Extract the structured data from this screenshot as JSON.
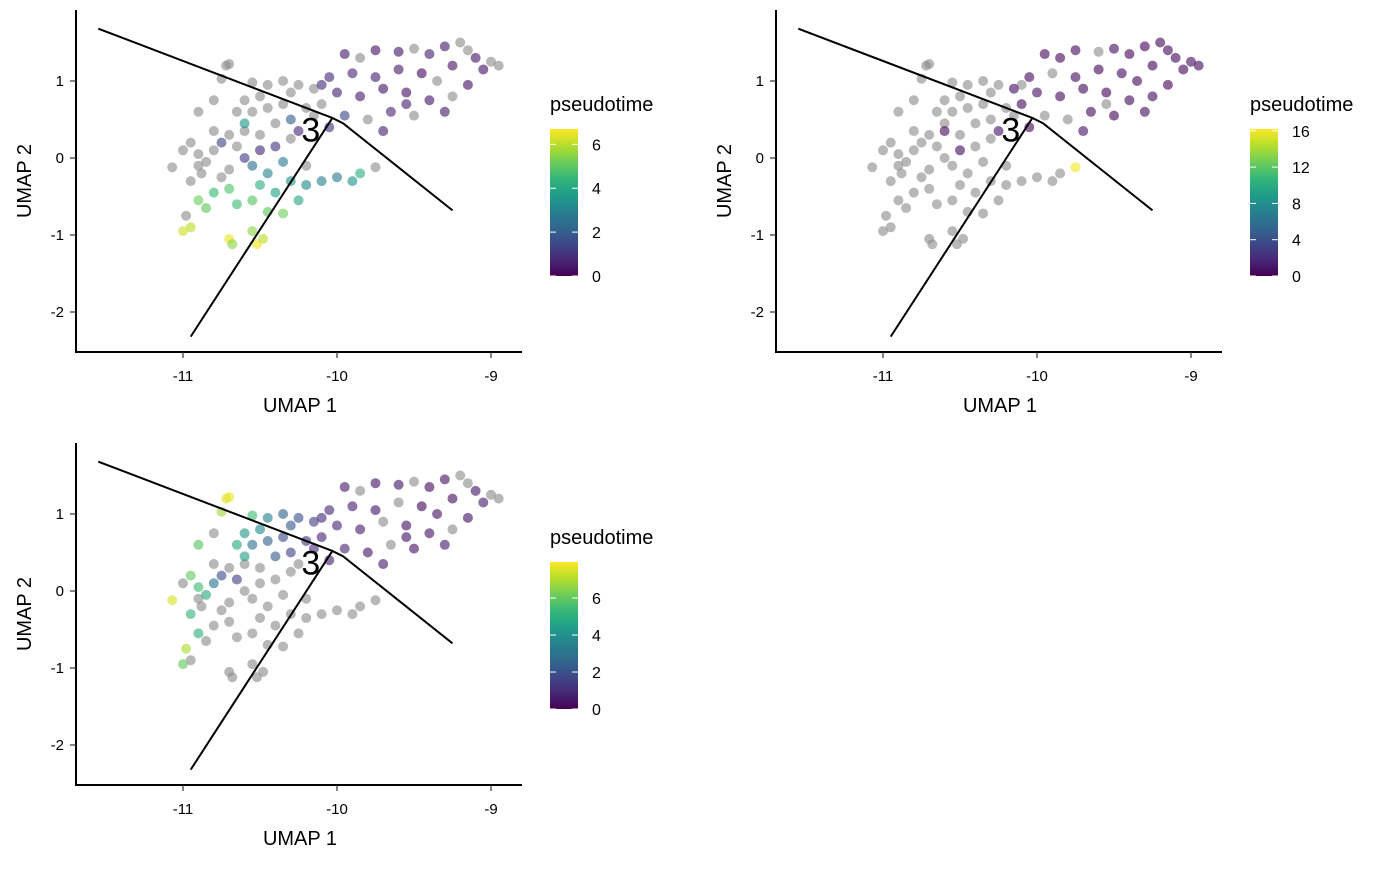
{
  "chart_data": [
    {
      "type": "scatter",
      "xlabel": "UMAP 1",
      "ylabel": "UMAP 2",
      "xlim": [
        -11.69,
        -8.8
      ],
      "ylim": [
        -2.52,
        1.92
      ],
      "xticks": [
        -11,
        -10,
        -9
      ],
      "yticks": [
        -2,
        -1,
        0,
        1
      ],
      "grid": false,
      "legend": {
        "title": "pseudotime",
        "placement": "right",
        "range": [
          0,
          6.7
        ],
        "ticks": [
          0,
          2,
          4,
          6
        ]
      },
      "pseudotime_column": 2,
      "node_label": "3"
    },
    {
      "type": "scatter",
      "xlabel": "UMAP 1",
      "ylabel": "UMAP 2",
      "xlim": [
        -11.69,
        -8.8
      ],
      "ylim": [
        -2.52,
        1.92
      ],
      "xticks": [
        -11,
        -10,
        -9
      ],
      "yticks": [
        -2,
        -1,
        0,
        1
      ],
      "grid": false,
      "legend": {
        "title": "pseudotime",
        "placement": "right",
        "range": [
          0,
          16.2
        ],
        "ticks": [
          0,
          4,
          8,
          12,
          16
        ]
      },
      "pseudotime_column": 3,
      "node_label": "3"
    },
    {
      "type": "scatter",
      "xlabel": "UMAP 1",
      "ylabel": "UMAP 2",
      "xlim": [
        -11.69,
        -8.8
      ],
      "ylim": [
        -2.52,
        1.92
      ],
      "xticks": [
        -11,
        -10,
        -9
      ],
      "yticks": [
        -2,
        -1,
        0,
        1
      ],
      "grid": false,
      "legend": {
        "title": "pseudotime",
        "placement": "right",
        "range": [
          0,
          7.95
        ],
        "ticks": [
          0,
          2,
          4,
          6
        ]
      },
      "pseudotime_column": 4,
      "node_label": "3"
    }
  ],
  "shared": {
    "colors": {
      "na": "#8c8c8c",
      "line": "#000000",
      "viridis": [
        "#440154",
        "#482878",
        "#3e4989",
        "#31688e",
        "#26828e",
        "#1f9e89",
        "#35b779",
        "#6ece58",
        "#b5de2b",
        "#fde725"
      ]
    },
    "trajectory": [
      [
        [
          -11.55,
          1.68
        ],
        [
          -10.03,
          0.52
        ],
        [
          -9.96,
          0.45
        ],
        [
          -9.25,
          -0.68
        ]
      ],
      [
        [
          -10.03,
          0.52
        ],
        [
          -10.95,
          -2.32
        ]
      ]
    ],
    "node_position": [
      -10.17,
      0.37
    ],
    "points_columns": [
      "umap1",
      "umap2",
      "pseudotime_panel1",
      "pseudotime_panel2",
      "pseudotime_panel3"
    ],
    "points": [
      [
        -9.95,
        1.35,
        0.5,
        0.4,
        0.6
      ],
      [
        -9.85,
        1.3,
        null,
        0.3,
        null
      ],
      [
        -9.75,
        1.4,
        0.3,
        0.5,
        0.4
      ],
      [
        -9.6,
        1.38,
        0.4,
        null,
        0.5
      ],
      [
        -9.5,
        1.42,
        null,
        0.6,
        null
      ],
      [
        -9.4,
        1.35,
        0.6,
        0.3,
        0.3
      ],
      [
        -9.3,
        1.45,
        0.5,
        0.2,
        0.4
      ],
      [
        -9.2,
        1.5,
        null,
        0.4,
        null
      ],
      [
        -9.1,
        1.3,
        0.4,
        0.5,
        0.5
      ],
      [
        -9.0,
        1.25,
        null,
        0.6,
        null
      ],
      [
        -8.95,
        1.2,
        null,
        0.5,
        null
      ],
      [
        -9.05,
        1.15,
        0.3,
        0.3,
        0.6
      ],
      [
        -9.25,
        1.2,
        0.4,
        0.2,
        0.3
      ],
      [
        -9.45,
        1.1,
        0.2,
        0.5,
        0.2
      ],
      [
        -9.6,
        1.15,
        0.5,
        0.3,
        null
      ],
      [
        -9.75,
        1.05,
        0.6,
        0.6,
        0.5
      ],
      [
        -9.9,
        1.1,
        0.7,
        null,
        0.7
      ],
      [
        -10.05,
        1.05,
        0.8,
        0.6,
        0.9
      ],
      [
        -10.1,
        0.95,
        0.9,
        null,
        1.0
      ],
      [
        -10.0,
        0.85,
        0.6,
        0.8,
        0.8
      ],
      [
        -9.85,
        0.8,
        0.5,
        0.5,
        0.6
      ],
      [
        -9.7,
        0.9,
        0.4,
        0.4,
        null
      ],
      [
        -9.55,
        0.85,
        0.3,
        0.3,
        0.3
      ],
      [
        -9.4,
        0.75,
        0.4,
        0.4,
        0.5
      ],
      [
        -9.25,
        0.8,
        null,
        0.5,
        null
      ],
      [
        -9.15,
        0.95,
        0.3,
        0.3,
        0.4
      ],
      [
        -9.3,
        0.6,
        0.5,
        0.6,
        0.6
      ],
      [
        -9.5,
        0.55,
        null,
        0.3,
        0.4
      ],
      [
        -9.65,
        0.6,
        0.7,
        0.5,
        null
      ],
      [
        -9.8,
        0.5,
        null,
        null,
        0.5
      ],
      [
        -9.95,
        0.55,
        1.5,
        null,
        0.8
      ],
      [
        -9.7,
        0.35,
        0.6,
        0.9,
        0.6
      ],
      [
        -9.55,
        0.7,
        0.5,
        null,
        0.5
      ],
      [
        -9.35,
        1.0,
        null,
        0.4,
        0.4
      ],
      [
        -9.15,
        1.4,
        null,
        0.4,
        null
      ],
      [
        -10.7,
        1.22,
        null,
        null,
        7.8
      ],
      [
        -10.72,
        1.2,
        null,
        null,
        7.6
      ],
      [
        -10.75,
        1.03,
        null,
        null,
        6.8
      ],
      [
        -10.55,
        0.98,
        null,
        null,
        5.5
      ],
      [
        -10.45,
        0.95,
        null,
        null,
        3.5
      ],
      [
        -10.35,
        1.0,
        null,
        null,
        2.5
      ],
      [
        -10.25,
        0.95,
        null,
        null,
        2.0
      ],
      [
        -10.15,
        0.9,
        null,
        0.7,
        1.5
      ],
      [
        -10.3,
        0.85,
        null,
        null,
        2.2
      ],
      [
        -10.5,
        0.8,
        null,
        null,
        3.8
      ],
      [
        -10.6,
        0.75,
        null,
        null,
        4.2
      ],
      [
        -10.65,
        0.6,
        null,
        null,
        4.8
      ],
      [
        -10.55,
        0.6,
        null,
        null,
        3.0
      ],
      [
        -10.45,
        0.65,
        null,
        null,
        2.6
      ],
      [
        -10.35,
        0.7,
        null,
        null,
        1.8
      ],
      [
        -10.2,
        0.65,
        null,
        null,
        1.2
      ],
      [
        -10.1,
        0.7,
        null,
        0.5,
        0.8
      ],
      [
        -10.6,
        0.45,
        3.5,
        null,
        4.5
      ],
      [
        -10.4,
        0.45,
        null,
        null,
        2.3
      ],
      [
        -10.3,
        0.5,
        2.0,
        null,
        1.6
      ],
      [
        -10.15,
        0.55,
        null,
        null,
        1.0
      ],
      [
        -10.8,
        0.75,
        null,
        null,
        null
      ],
      [
        -10.9,
        0.6,
        null,
        null,
        5.8
      ],
      [
        -10.05,
        0.4,
        1.0,
        0.6,
        0.7
      ],
      [
        -10.25,
        0.35,
        0.8,
        0.9,
        null
      ],
      [
        -11.07,
        -0.12,
        null,
        null,
        7.5
      ],
      [
        -10.95,
        0.2,
        null,
        null,
        6.0
      ],
      [
        -10.9,
        0.05,
        null,
        null,
        5.5
      ],
      [
        -10.85,
        -0.05,
        null,
        null,
        4.8
      ],
      [
        -10.8,
        0.1,
        null,
        null,
        3.2
      ],
      [
        -10.75,
        0.2,
        1.5,
        null,
        2.0
      ],
      [
        -10.7,
        0.3,
        null,
        null,
        null
      ],
      [
        -10.65,
        0.15,
        null,
        null,
        1.5
      ],
      [
        -10.6,
        0.0,
        1.2,
        null,
        null
      ],
      [
        -10.5,
        0.1,
        0.8,
        0.6,
        null
      ],
      [
        -10.4,
        0.15,
        1.0,
        null,
        null
      ],
      [
        -10.3,
        0.25,
        null,
        null,
        null
      ],
      [
        -10.95,
        -0.3,
        null,
        null,
        5.2
      ],
      [
        -10.88,
        -0.2,
        null,
        null,
        null
      ],
      [
        -10.7,
        -0.15,
        null,
        null,
        null
      ],
      [
        -10.55,
        -0.1,
        2.5,
        null,
        null
      ],
      [
        -10.45,
        -0.2,
        3.0,
        null,
        null
      ],
      [
        -10.35,
        -0.05,
        2.8,
        null,
        null
      ],
      [
        -10.2,
        -0.1,
        null,
        null,
        null
      ],
      [
        -11.0,
        0.1,
        null,
        null,
        null
      ],
      [
        -10.8,
        0.35,
        null,
        null,
        null
      ],
      [
        -10.6,
        0.35,
        null,
        0.5,
        null
      ],
      [
        -10.9,
        -0.1,
        null,
        null,
        null
      ],
      [
        -10.75,
        -0.25,
        null,
        null,
        null
      ],
      [
        -10.5,
        0.3,
        null,
        null,
        null
      ],
      [
        -10.95,
        -0.9,
        6.0,
        null,
        null
      ],
      [
        -11.0,
        -0.95,
        6.2,
        null,
        6.0
      ],
      [
        -10.98,
        -0.75,
        null,
        null,
        7.0
      ],
      [
        -10.9,
        -0.55,
        5.2,
        null,
        5.0
      ],
      [
        -10.85,
        -0.65,
        5.0,
        null,
        null
      ],
      [
        -10.8,
        -0.45,
        4.5,
        null,
        null
      ],
      [
        -10.7,
        -0.4,
        4.8,
        null,
        null
      ],
      [
        -10.65,
        -0.6,
        4.6,
        null,
        null
      ],
      [
        -10.55,
        -0.55,
        4.9,
        null,
        null
      ],
      [
        -10.5,
        -0.35,
        4.2,
        null,
        null
      ],
      [
        -10.45,
        -0.7,
        5.0,
        null,
        null
      ],
      [
        -10.4,
        -0.45,
        3.8,
        null,
        null
      ],
      [
        -10.3,
        -0.3,
        3.5,
        null,
        null
      ],
      [
        -10.25,
        -0.55,
        4.0,
        null,
        null
      ],
      [
        -10.2,
        -0.35,
        3.2,
        null,
        null
      ],
      [
        -10.1,
        -0.3,
        3.0,
        null,
        null
      ],
      [
        -10.0,
        -0.25,
        2.8,
        null,
        null
      ],
      [
        -9.85,
        -0.2,
        4.2,
        null,
        null
      ],
      [
        -9.9,
        -0.3,
        3.5,
        null,
        null
      ],
      [
        -10.35,
        -0.72,
        5.2,
        null,
        null
      ],
      [
        -10.7,
        -1.05,
        6.5,
        null,
        null
      ],
      [
        -10.68,
        -1.12,
        5.5,
        null,
        null
      ],
      [
        -10.52,
        -1.12,
        6.6,
        null,
        null
      ],
      [
        -10.48,
        -1.05,
        6.0,
        null,
        null
      ],
      [
        -10.55,
        -0.95,
        5.5,
        null,
        null
      ],
      [
        -9.75,
        -0.12,
        null,
        16.0,
        null
      ]
    ]
  }
}
